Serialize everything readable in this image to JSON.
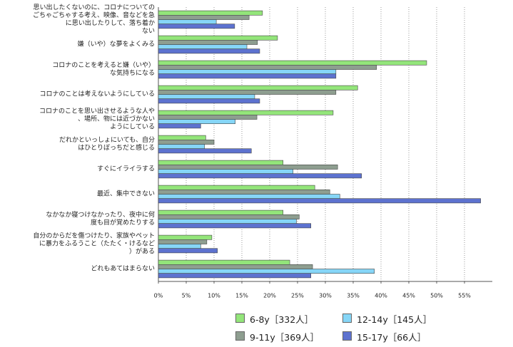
{
  "chart_data": {
    "type": "barh",
    "categories": [
      "思い出したくないのに、コロナについての\nごちゃごちゃする考え、映像、音などを急\nに思い出したりして、落ち着か\nない",
      "嫌（いや）な夢をよくみる",
      "コロナのことを考えると嫌（いや）\nな気持ちになる",
      "コロナのことは考えないようにしている",
      "コロナのことを思い出させるような人や\n、場所、物には近づかない\nようにしている",
      "だれかといっしょにいても、自分\nはひとりぼっちだと感じる",
      "すぐにイライラする",
      "最近、集中できない",
      "なかなか寝つけなかったり、夜中に何\n度も目が覚めたりする",
      "自分のからだを傷つけたり、家族やペット\nに暴力をふるうこと（たたく・けるなど\n）がある",
      "どれもあてはまらない"
    ],
    "series": [
      {
        "name": "6-8y［332人］",
        "color": "#93e57a",
        "values": [
          18.7,
          21.4,
          48.2,
          35.8,
          31.4,
          8.5,
          22.4,
          28.1,
          22.4,
          9.6,
          23.6
        ]
      },
      {
        "name": "9-11y［369人］",
        "color": "#8e9e90",
        "values": [
          16.3,
          17.8,
          39.2,
          31.9,
          17.7,
          10.0,
          32.2,
          30.8,
          25.3,
          8.7,
          27.7
        ]
      },
      {
        "name": "12-14y［145人］",
        "color": "#86d6f7",
        "values": [
          10.4,
          15.9,
          31.9,
          17.3,
          13.8,
          8.3,
          24.2,
          32.6,
          24.8,
          7.6,
          38.8
        ]
      },
      {
        "name": "15-17y［66人］",
        "color": "#5d72cf",
        "values": [
          13.7,
          18.2,
          31.9,
          18.2,
          7.6,
          16.7,
          36.5,
          57.9,
          27.4,
          10.6,
          27.4
        ]
      }
    ],
    "xlim": [
      0,
      60
    ],
    "xticks": [
      {
        "value": 0,
        "label": "0%"
      },
      {
        "value": 5,
        "label": "5%"
      },
      {
        "value": 10,
        "label": "10%"
      },
      {
        "value": 15,
        "label": "15%"
      },
      {
        "value": 20,
        "label": "20%"
      },
      {
        "value": 25,
        "label": "25%"
      },
      {
        "value": 30,
        "label": "30%"
      },
      {
        "value": 35,
        "label": "35%"
      },
      {
        "value": 40,
        "label": "40%"
      },
      {
        "value": 45,
        "label": "45%"
      },
      {
        "value": 50,
        "label": "50%"
      },
      {
        "value": 55,
        "label": "55%"
      }
    ],
    "grid": true
  }
}
